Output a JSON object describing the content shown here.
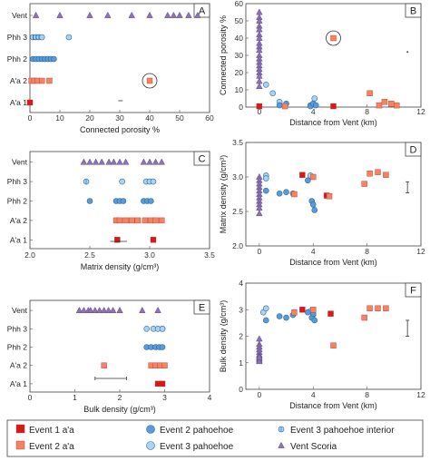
{
  "colors": {
    "e1_aa": "#d7191c",
    "e2_aa": "#f4845f",
    "e2_pah": "#5b9bd5",
    "e3_pah": "#a9d3f0",
    "vent": "#8e72b8",
    "panel_edge": "#444444"
  },
  "chart_data": [
    {
      "id": "A",
      "type": "scatter",
      "xlabel": "Connected porosity %",
      "xlim": [
        0,
        60
      ],
      "xticks": [
        "0",
        "10",
        "20",
        "30",
        "40",
        "50",
        "60"
      ],
      "categories": [
        "Vent",
        "Phh 3",
        "Phh 2",
        "A'a 2",
        "A'a 1"
      ],
      "series": [
        {
          "name": "Vent Scoria",
          "cat": "Vent",
          "x": [
            2,
            10,
            20,
            26,
            34,
            40,
            46,
            48,
            50,
            53,
            56
          ]
        },
        {
          "name": "Event 3 pahoehoe interior",
          "cat": "Phh 3",
          "x": [
            1,
            2,
            3
          ]
        },
        {
          "name": "Event 3 pahoehoe",
          "cat": "Phh 3",
          "x": [
            4,
            13
          ]
        },
        {
          "name": "Event 2 pahoehoe",
          "cat": "Phh 2",
          "x": [
            1,
            2,
            3,
            4,
            5,
            6,
            7,
            8
          ]
        },
        {
          "name": "Event 2 a'a",
          "cat": "A'a 2",
          "x": [
            0.5,
            1.5,
            2.5,
            4,
            6.5,
            40
          ]
        },
        {
          "name": "Event 1 a'a",
          "cat": "A'a 1",
          "x": [
            0
          ]
        }
      ],
      "annotations": [
        "circled outlier at 40 % (A'a 2)",
        "small tick near 30 % below A'a 1"
      ]
    },
    {
      "id": "B",
      "type": "scatter",
      "xlabel": "Distance from Vent (km)",
      "ylabel": "Connected porosity %",
      "xlim": [
        -1,
        12
      ],
      "ylim": [
        0,
        60
      ],
      "xticks": [
        "0",
        "4",
        "8",
        "12"
      ],
      "yticks": [
        "0",
        "10",
        "20",
        "30",
        "40",
        "50",
        "60"
      ],
      "series": [
        {
          "name": "Vent Scoria",
          "x": [
            0,
            0,
            0,
            0,
            0,
            0,
            0,
            0,
            0,
            0,
            0,
            0,
            0,
            0,
            0,
            0,
            0,
            0,
            0
          ],
          "y": [
            55,
            52,
            50,
            47,
            45,
            42,
            40,
            37,
            35,
            33,
            30,
            28,
            26,
            24,
            22,
            20,
            18,
            15,
            12
          ]
        },
        {
          "name": "Event 3 pahoehoe",
          "x": [
            0.5,
            1.0,
            1.5,
            3.8,
            4.1
          ],
          "y": [
            13,
            8,
            3,
            1,
            5
          ]
        },
        {
          "name": "Event 2 pahoehoe",
          "x": [
            1.5,
            2.0,
            3.8,
            4.0,
            4.2
          ],
          "y": [
            1,
            2,
            0.5,
            2,
            1
          ]
        },
        {
          "name": "Event 1 a'a",
          "x": [
            0.0,
            5.5
          ],
          "y": [
            0.5,
            0.5
          ]
        },
        {
          "name": "Event 2 a'a",
          "x": [
            1.9,
            5.5,
            8.2,
            8.9,
            9.3,
            9.8,
            10.2
          ],
          "y": [
            0.5,
            40,
            8,
            1,
            3,
            2,
            1
          ]
        }
      ]
    },
    {
      "id": "C",
      "type": "scatter",
      "xlabel": "Matrix density (g/cm³)",
      "xlim": [
        2.0,
        3.5
      ],
      "xticks": [
        "2.0",
        "2.5",
        "3.0",
        "3.5"
      ],
      "categories": [
        "Vent",
        "Phh 3",
        "Phh 2",
        "A'a 2",
        "A'a 1"
      ],
      "series": [
        {
          "name": "Vent Scoria",
          "cat": "Vent",
          "x": [
            2.45,
            2.5,
            2.55,
            2.6,
            2.66,
            2.7,
            2.75,
            2.8,
            2.95,
            3.0,
            3.05,
            3.1
          ]
        },
        {
          "name": "Event 3 pahoehoe interior",
          "cat": "Phh 3",
          "x": [
            2.47
          ]
        },
        {
          "name": "Event 3 pahoehoe",
          "cat": "Phh 3",
          "x": [
            2.77,
            2.97,
            3.0,
            3.03
          ]
        },
        {
          "name": "Event 2 pahoehoe",
          "cat": "Phh 2",
          "x": [
            2.5,
            2.72,
            2.75,
            2.78,
            2.95,
            2.98,
            3.01
          ]
        },
        {
          "name": "Event 2 a'a",
          "cat": "A'a 2",
          "x": [
            2.72,
            2.75,
            2.8,
            2.85,
            2.9,
            2.96,
            3.01,
            3.05,
            3.1
          ]
        },
        {
          "name": "Event 1 a'a",
          "cat": "A'a 1",
          "x": [
            2.73,
            3.03
          ]
        }
      ]
    },
    {
      "id": "D",
      "type": "scatter",
      "xlabel": "Distance from Vent (km)",
      "ylabel": "Matrix density (g/cm³)",
      "xlim": [
        -1,
        12
      ],
      "ylim": [
        2.0,
        3.5
      ],
      "xticks": [
        "0",
        "4",
        "8",
        "12"
      ],
      "yticks": [
        "2.0",
        "2.5",
        "3.0",
        "3.5"
      ],
      "series": [
        {
          "name": "Vent Scoria",
          "x": [
            0,
            0,
            0,
            0,
            0,
            0,
            0,
            0,
            0,
            0,
            0
          ],
          "y": [
            3.0,
            2.95,
            2.9,
            2.85,
            2.8,
            2.75,
            2.7,
            2.65,
            2.6,
            2.55,
            2.47
          ]
        },
        {
          "name": "Event 3 pahoehoe",
          "x": [
            0.5,
            0.5,
            3.8
          ],
          "y": [
            3.02,
            2.98,
            3.02
          ]
        },
        {
          "name": "Event 2 pahoehoe",
          "x": [
            0.5,
            1.5,
            2.0,
            2.5,
            3.6,
            3.9,
            4.0,
            4.1
          ],
          "y": [
            2.8,
            2.76,
            2.78,
            2.76,
            2.95,
            2.65,
            2.6,
            2.52
          ]
        },
        {
          "name": "Event 1 a'a",
          "x": [
            3.2,
            5.0
          ],
          "y": [
            3.03,
            2.73
          ]
        },
        {
          "name": "Event 2 a'a",
          "x": [
            2.6,
            4.0,
            5.2,
            7.8,
            8.2,
            8.8,
            9.4
          ],
          "y": [
            2.75,
            3.0,
            2.72,
            2.9,
            3.05,
            3.07,
            3.03
          ]
        }
      ],
      "annotations": [
        "error bar at x ≈ 11"
      ]
    },
    {
      "id": "E",
      "type": "scatter",
      "xlabel": "Bulk density (g/cm³)",
      "xlim": [
        0,
        4
      ],
      "xticks": [
        "0",
        "1",
        "2",
        "3",
        "4"
      ],
      "categories": [
        "Vent",
        "Phh 3",
        "Phh 2",
        "A'a 2",
        "A'a 1"
      ],
      "series": [
        {
          "name": "Vent Scoria",
          "cat": "Vent",
          "x": [
            1.1,
            1.2,
            1.3,
            1.35,
            1.45,
            1.55,
            1.65,
            1.75,
            1.85,
            2.0,
            2.5,
            2.85
          ]
        },
        {
          "name": "Event 3 pahoehoe interior",
          "cat": "Phh 3",
          "x": [
            2.95
          ]
        },
        {
          "name": "Event 3 pahoehoe",
          "cat": "Phh 3",
          "x": [
            2.6,
            2.75,
            2.85,
            2.95
          ]
        },
        {
          "name": "Event 2 pahoehoe",
          "cat": "Phh 2",
          "x": [
            2.6,
            2.7,
            2.8,
            2.88,
            2.95
          ]
        },
        {
          "name": "Event 2 a'a",
          "cat": "A'a 2",
          "x": [
            1.65,
            2.7,
            2.8,
            2.9,
            3.0
          ]
        },
        {
          "name": "Event 1 a'a",
          "cat": "A'a 1",
          "x": [
            2.85,
            2.95
          ]
        }
      ],
      "annotations": [
        "error bar near x ≈ 1.7 below A'a 1"
      ]
    },
    {
      "id": "F",
      "type": "scatter",
      "xlabel": "Distance from Vent (km)",
      "ylabel": "Bulk density (g/cm³)",
      "xlim": [
        -1,
        12
      ],
      "ylim": [
        0,
        4
      ],
      "xticks": [
        "0",
        "4",
        "8",
        "12"
      ],
      "yticks": [
        "0",
        "1",
        "2",
        "3",
        "4"
      ],
      "series": [
        {
          "name": "Vent Scoria",
          "x": [
            0,
            0,
            0,
            0,
            0,
            0,
            0,
            0,
            0,
            0,
            0
          ],
          "y": [
            1.9,
            1.7,
            1.6,
            1.5,
            1.4,
            1.3,
            1.25,
            1.15,
            1.1,
            1.05,
            1.2
          ]
        },
        {
          "name": "Event 3 pahoehoe",
          "x": [
            0.3,
            0.5,
            3.8,
            4.0
          ],
          "y": [
            2.9,
            3.05,
            2.95,
            2.8
          ]
        },
        {
          "name": "Event 2 pahoehoe",
          "x": [
            0.5,
            1.5,
            2.0,
            2.5,
            3.6,
            3.9,
            4.0,
            4.1
          ],
          "y": [
            2.6,
            2.75,
            2.7,
            2.8,
            2.9,
            2.7,
            2.85,
            2.6
          ]
        },
        {
          "name": "Event 1 a'a",
          "x": [
            3.2,
            5.3
          ],
          "y": [
            3.0,
            2.85
          ]
        },
        {
          "name": "Event 2 a'a",
          "x": [
            2.6,
            4.0,
            5.5,
            7.8,
            8.2,
            8.8,
            9.4
          ],
          "y": [
            2.9,
            3.0,
            1.65,
            2.7,
            3.05,
            3.05,
            3.05
          ]
        }
      ],
      "annotations": [
        "error bar at x ≈ 11"
      ]
    }
  ],
  "legend": [
    {
      "label": "Event 1 a'a",
      "marker": "square",
      "color": "#d7191c"
    },
    {
      "label": "Event 2 pahoehoe",
      "marker": "circle",
      "color": "#5b9bd5"
    },
    {
      "label": "Event 3 pahoehoe interior",
      "marker": "circle-split",
      "color": "#a9d3f0"
    },
    {
      "label": "Event 2 a'a",
      "marker": "square",
      "color": "#f4845f"
    },
    {
      "label": "Event 3 pahoehoe",
      "marker": "circle",
      "color": "#a9d3f0"
    },
    {
      "label": "Vent Scoria",
      "marker": "triangle",
      "color": "#8e72b8"
    }
  ]
}
